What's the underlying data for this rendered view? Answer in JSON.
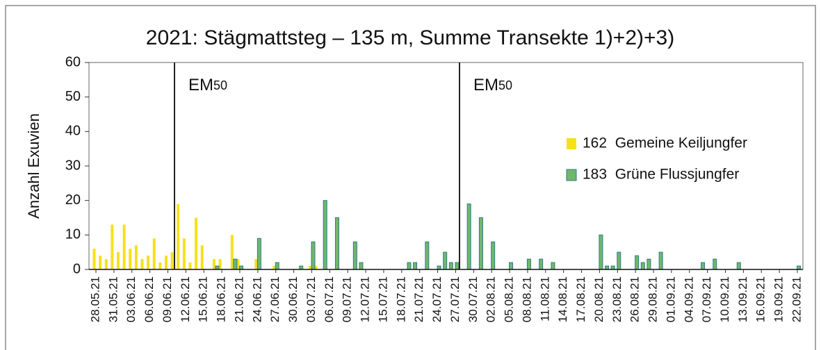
{
  "chart_data": {
    "type": "bar",
    "title": "2021: Stägmattsteg – 135 m, Summe Transekte 1)+2)+3)",
    "ylabel": "Anzahl Exuvien",
    "annotations": [
      {
        "text": "EM",
        "sub": "50"
      },
      {
        "text": "EM",
        "sub": "50"
      }
    ],
    "categories": [
      "28.05.21",
      null,
      null,
      "31.05.21",
      null,
      null,
      "03.06.21",
      null,
      null,
      "06.06.21",
      null,
      null,
      "09.06.21",
      null,
      null,
      "12.06.21",
      null,
      null,
      "15.06.21",
      null,
      null,
      "18.06.21",
      null,
      null,
      "21.06.21",
      null,
      null,
      "24.06.21",
      null,
      null,
      "27.06.21",
      null,
      null,
      "30.06.21",
      null,
      null,
      "03.07.21",
      null,
      null,
      "06.07.21",
      null,
      null,
      "09.07.21",
      null,
      null,
      "12.07.21",
      null,
      null,
      "15.07.21",
      null,
      null,
      "18.07.21",
      null,
      null,
      "21.07.21",
      null,
      null,
      "24.07.21",
      null,
      null,
      "27.07.21",
      null,
      null,
      "30.07.21",
      null,
      null,
      "02.08.21",
      null,
      null,
      "05.08.21",
      null,
      null,
      "08.08.21",
      null,
      null,
      "11.08.21",
      null,
      null,
      "14.08.21",
      null,
      null,
      "17.08.21",
      null,
      null,
      "20.08.21",
      null,
      null,
      "23.08.21",
      null,
      null,
      "26.08.21",
      null,
      null,
      "29.08.21",
      null,
      null,
      "01.09.21",
      null,
      null,
      "04.09.21",
      null,
      null,
      "07.09.21",
      null,
      null,
      "10.09.21",
      null,
      null,
      "13.09.21",
      null,
      null,
      "16.09.21",
      null,
      null,
      "19.09.21",
      null,
      null,
      "22.09.21"
    ],
    "series": [
      {
        "name": "162  Gemeine Keiljungfer",
        "color": "#f5e11a",
        "values": [
          6,
          4,
          3,
          13,
          5,
          13,
          6,
          7,
          3,
          4,
          9,
          2,
          4,
          5,
          19,
          9,
          2,
          15,
          7,
          0,
          3,
          3,
          0,
          10,
          3,
          0,
          0,
          3,
          0,
          0,
          1,
          0,
          0,
          0,
          0,
          0,
          1,
          1,
          0,
          0,
          0,
          0,
          0,
          0,
          0,
          0,
          0,
          0,
          0,
          0,
          0,
          0,
          0,
          0,
          0,
          0,
          0,
          0,
          0,
          0,
          0,
          0,
          0,
          0,
          0,
          0,
          0,
          0,
          0,
          0,
          0,
          0,
          0,
          0,
          0,
          0,
          0,
          0,
          0,
          0,
          0,
          0,
          0,
          0,
          0,
          0,
          0,
          0,
          0,
          0,
          0,
          0,
          0,
          0,
          0,
          0,
          0,
          0,
          0,
          0,
          0,
          0,
          0,
          0,
          0,
          0,
          0,
          0,
          0,
          0,
          0,
          0,
          0,
          0,
          0,
          0,
          0,
          0
        ]
      },
      {
        "name": "183  Grüne Flussjungfer",
        "color": "#6fb86a",
        "values": [
          0,
          0,
          0,
          0,
          0,
          0,
          0,
          0,
          0,
          0,
          0,
          0,
          0,
          0,
          0,
          0,
          0,
          0,
          0,
          0,
          1,
          0,
          0,
          3,
          1,
          0,
          0,
          9,
          0,
          0,
          2,
          0,
          0,
          0,
          1,
          0,
          8,
          0,
          20,
          0,
          15,
          0,
          0,
          8,
          2,
          0,
          0,
          0,
          0,
          0,
          0,
          0,
          2,
          2,
          0,
          8,
          0,
          1,
          5,
          2,
          2,
          0,
          19,
          0,
          15,
          0,
          8,
          0,
          0,
          2,
          0,
          0,
          3,
          0,
          3,
          0,
          2,
          0,
          0,
          0,
          0,
          0,
          0,
          0,
          10,
          1,
          1,
          5,
          0,
          0,
          4,
          2,
          3,
          0,
          5,
          0,
          0,
          0,
          0,
          0,
          0,
          2,
          0,
          3,
          0,
          0,
          0,
          2,
          0,
          0,
          0,
          0,
          0,
          0,
          0,
          0,
          0,
          1
        ]
      }
    ],
    "ylim": [
      0,
      60
    ],
    "yticks": [
      0,
      10,
      20,
      30,
      40,
      50,
      60
    ],
    "legend": "right"
  }
}
